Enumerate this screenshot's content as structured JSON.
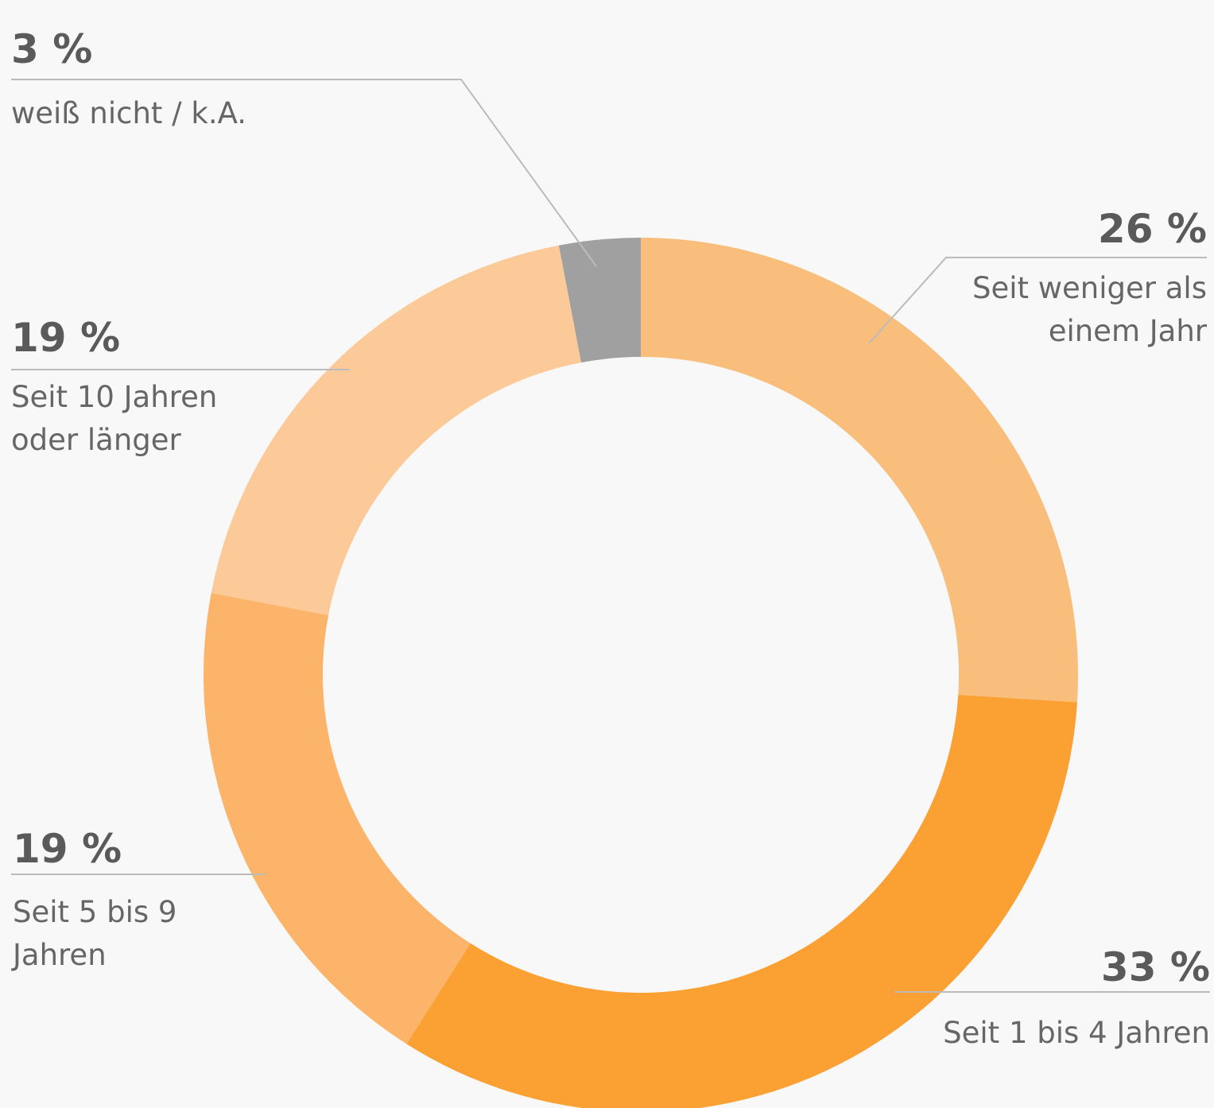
{
  "chart_data": {
    "type": "pie",
    "categories": [
      "Seit weniger als einem Jahr",
      "Seit 1 bis 4 Jahren",
      "Seit 5 bis 9 Jahren",
      "Seit 10 Jahren oder länger",
      "weiß nicht / k.A."
    ],
    "values": [
      26,
      33,
      19,
      19,
      3
    ],
    "value_labels": [
      "26 %",
      "33 %",
      "19 %",
      "19 %",
      "3 %"
    ],
    "colors": [
      "#f9be7c",
      "#fba033",
      "#fbb469",
      "#fbca98",
      "#a0a0a0"
    ]
  }
}
